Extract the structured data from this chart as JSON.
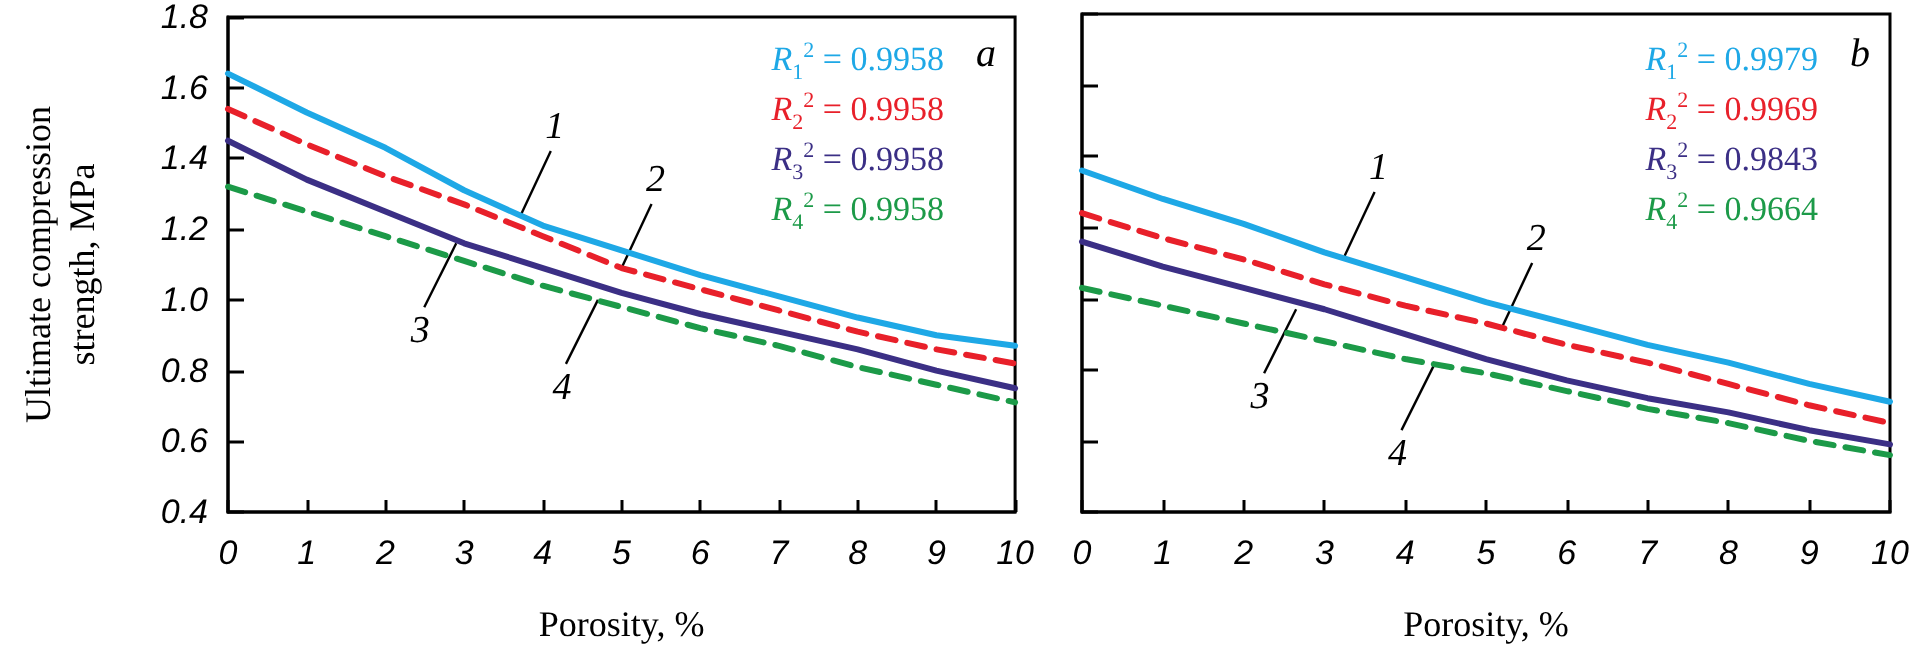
{
  "chart_data": [
    {
      "type": "line",
      "title": "a",
      "xlabel": "Porosity, %",
      "ylabel": "Ultimate compression\nstrength, MPa",
      "x": [
        0,
        1,
        2,
        3,
        4,
        5,
        6,
        7,
        8,
        9,
        10
      ],
      "series": [
        {
          "color": "#1ea8e6",
          "line_style": "solid",
          "values": [
            1.64,
            1.53,
            1.43,
            1.31,
            1.21,
            1.14,
            1.07,
            1.01,
            0.95,
            0.9,
            0.87
          ]
        },
        {
          "color": "#e8202a",
          "line_style": "dashed",
          "values": [
            1.54,
            1.44,
            1.35,
            1.27,
            1.18,
            1.09,
            1.03,
            0.97,
            0.91,
            0.86,
            0.82
          ]
        },
        {
          "color": "#3b2f85",
          "line_style": "solid",
          "values": [
            1.45,
            1.34,
            1.25,
            1.16,
            1.09,
            1.02,
            0.96,
            0.91,
            0.86,
            0.8,
            0.75
          ]
        },
        {
          "color": "#1c9a48",
          "line_style": "dashed",
          "values": [
            1.32,
            1.25,
            1.18,
            1.11,
            1.04,
            0.98,
            0.92,
            0.87,
            0.81,
            0.76,
            0.71
          ]
        }
      ],
      "annotations": [
        "R$_{1}$$^{2}$ = 0.9958",
        "R$_{2}$$^{2}$ = 0.9958",
        "R$_{3}$$^{2}$ = 0.9958",
        "R$_{4}$$^{2}$ = 0.9958",
        {
          "text": "1",
          "x": 3.72,
          "y": 1.24
        },
        {
          "text": "2",
          "x": 5.0,
          "y": 1.09
        },
        {
          "text": "3",
          "x": 2.9,
          "y": 1.16
        },
        {
          "text": "4",
          "x": 4.7,
          "y": 1.0
        }
      ],
      "xlim": [
        0,
        10
      ],
      "xticks": [
        0,
        1,
        2,
        3,
        4,
        5,
        6,
        7,
        8,
        9,
        10
      ],
      "ylim": [
        0.4,
        1.8
      ],
      "yticks": [
        0.4,
        0.6,
        0.8,
        {
          "value": 1,
          "label": "1.0"
        },
        1.2,
        1.4,
        1.6,
        1.8
      ],
      "grid": false,
      "marker": "none"
    },
    {
      "type": "line",
      "title": "b",
      "xlabel": "Porosity, %",
      "x": [
        0,
        1,
        2,
        3,
        4,
        5,
        6,
        7,
        8,
        9,
        10
      ],
      "series": [
        {
          "color": "#1ea8e6",
          "line_style": "solid",
          "values": [
            1.36,
            1.28,
            1.21,
            1.13,
            1.06,
            0.99,
            0.93,
            0.87,
            0.82,
            0.76,
            0.71
          ]
        },
        {
          "color": "#e8202a",
          "line_style": "dashed",
          "values": [
            1.24,
            1.17,
            1.11,
            1.04,
            0.98,
            0.93,
            0.87,
            0.82,
            0.76,
            0.7,
            0.65
          ]
        },
        {
          "color": "#3b2f85",
          "line_style": "solid",
          "values": [
            1.16,
            1.09,
            1.03,
            0.97,
            0.9,
            0.83,
            0.77,
            0.72,
            0.68,
            0.63,
            0.59
          ]
        },
        {
          "color": "#1c9a48",
          "line_style": "dashed",
          "values": [
            1.03,
            0.98,
            0.93,
            0.88,
            0.83,
            0.79,
            0.74,
            0.69,
            0.65,
            0.6,
            0.56
          ]
        }
      ],
      "annotations": [
        "R$_{1}$$^{2}$ = 0.9979",
        "R$_{2}$$^{2}$ = 0.9969",
        "R$_{3}$$^{2}$ = 0.9843",
        "R$_{4}$$^{2}$ = 0.9664",
        {
          "text": "1",
          "x": 3.25,
          "y": 1.12
        },
        {
          "text": "2",
          "x": 5.2,
          "y": 0.92
        },
        {
          "text": "3",
          "x": 2.65,
          "y": 0.97
        },
        {
          "text": "4",
          "x": 4.35,
          "y": 0.81
        }
      ],
      "xlim": [
        0,
        10
      ],
      "xticks": [
        0,
        1,
        2,
        3,
        4,
        5,
        6,
        7,
        8,
        9,
        10
      ],
      "ylim": [
        0.4,
        1.8
      ],
      "yticks": [
        0.4,
        0.6,
        0.8,
        1,
        1.2,
        1.4,
        1.6,
        1.8
      ],
      "tick_labels": "x",
      "grid": false,
      "marker": "none"
    }
  ]
}
